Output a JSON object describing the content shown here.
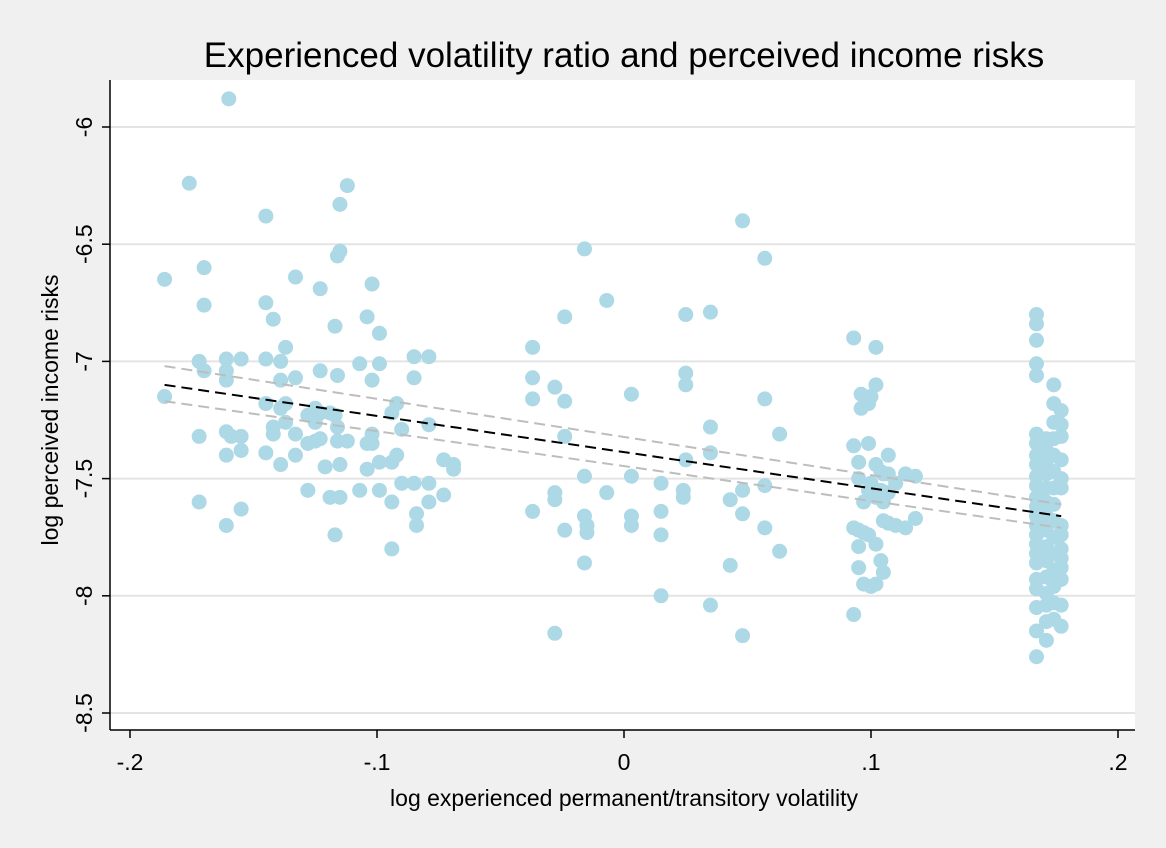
{
  "chart_data": {
    "type": "scatter",
    "title": "Experienced volatility ratio and perceived income risks",
    "xlabel": "log experienced permanent/transitory volatility",
    "ylabel": "log perceived income risks",
    "xlim": [
      -0.2,
      0.205
    ],
    "ylim": [
      -8.55,
      -5.8
    ],
    "x_ticks": [
      {
        "value": -0.2,
        "label": "-.2"
      },
      {
        "value": -0.1,
        "label": "-.1"
      },
      {
        "value": 0,
        "label": "0"
      },
      {
        "value": 0.1,
        "label": ".1"
      },
      {
        "value": 0.2,
        "label": ".2"
      }
    ],
    "y_ticks": [
      {
        "value": -6,
        "label": "-6"
      },
      {
        "value": -6.5,
        "label": "-6.5"
      },
      {
        "value": -7,
        "label": "-7"
      },
      {
        "value": -7.5,
        "label": "-7.5"
      },
      {
        "value": -8,
        "label": "-8"
      },
      {
        "value": -8.5,
        "label": "-8.5"
      }
    ],
    "grid": "horizontal",
    "colors": {
      "points": "#add8e6",
      "fit_line": "#000000",
      "ci_lines": "#bdbdbd",
      "plot_background": "#ffffff",
      "page_background": "#f0f0f0",
      "grid": "#e4e4e4"
    },
    "fit_line": {
      "x": [
        -0.186,
        0.177
      ],
      "y": [
        -7.1,
        -7.66
      ]
    },
    "ci_upper": {
      "x": [
        -0.186,
        0.177
      ],
      "y": [
        -7.02,
        -7.61
      ]
    },
    "ci_lower": {
      "x": [
        -0.186,
        0.177
      ],
      "y": [
        -7.17,
        -7.71
      ]
    },
    "points": [
      [
        -0.186,
        -6.65
      ],
      [
        -0.186,
        -7.15
      ],
      [
        -0.176,
        -6.24
      ],
      [
        -0.172,
        -7.0
      ],
      [
        -0.172,
        -7.32
      ],
      [
        -0.172,
        -7.6
      ],
      [
        -0.17,
        -6.6
      ],
      [
        -0.17,
        -6.76
      ],
      [
        -0.17,
        -7.04
      ],
      [
        -0.16,
        -5.88
      ],
      [
        -0.161,
        -6.99
      ],
      [
        -0.161,
        -7.04
      ],
      [
        -0.161,
        -7.08
      ],
      [
        -0.161,
        -7.3
      ],
      [
        -0.161,
        -7.4
      ],
      [
        -0.161,
        -7.7
      ],
      [
        -0.159,
        -7.32
      ],
      [
        -0.155,
        -6.99
      ],
      [
        -0.155,
        -7.32
      ],
      [
        -0.155,
        -7.38
      ],
      [
        -0.155,
        -7.63
      ],
      [
        -0.145,
        -6.38
      ],
      [
        -0.145,
        -6.75
      ],
      [
        -0.145,
        -6.99
      ],
      [
        -0.145,
        -7.18
      ],
      [
        -0.145,
        -7.39
      ],
      [
        -0.142,
        -6.82
      ],
      [
        -0.142,
        -7.28
      ],
      [
        -0.142,
        -7.31
      ],
      [
        -0.139,
        -7.0
      ],
      [
        -0.139,
        -7.08
      ],
      [
        -0.139,
        -7.2
      ],
      [
        -0.139,
        -7.44
      ],
      [
        -0.137,
        -6.94
      ],
      [
        -0.137,
        -7.18
      ],
      [
        -0.137,
        -7.26
      ],
      [
        -0.133,
        -6.64
      ],
      [
        -0.133,
        -7.07
      ],
      [
        -0.133,
        -7.31
      ],
      [
        -0.133,
        -7.4
      ],
      [
        -0.128,
        -7.23
      ],
      [
        -0.128,
        -7.35
      ],
      [
        -0.128,
        -7.55
      ],
      [
        -0.125,
        -7.2
      ],
      [
        -0.125,
        -7.26
      ],
      [
        -0.125,
        -7.34
      ],
      [
        -0.123,
        -6.69
      ],
      [
        -0.123,
        -7.04
      ],
      [
        -0.123,
        -7.22
      ],
      [
        -0.123,
        -7.33
      ],
      [
        -0.121,
        -7.45
      ],
      [
        -0.119,
        -7.22
      ],
      [
        -0.119,
        -7.58
      ],
      [
        -0.117,
        -6.85
      ],
      [
        -0.117,
        -7.23
      ],
      [
        -0.117,
        -7.74
      ],
      [
        -0.116,
        -6.55
      ],
      [
        -0.116,
        -7.06
      ],
      [
        -0.116,
        -7.28
      ],
      [
        -0.116,
        -7.34
      ],
      [
        -0.115,
        -6.53
      ],
      [
        -0.115,
        -6.33
      ],
      [
        -0.115,
        -7.44
      ],
      [
        -0.115,
        -7.58
      ],
      [
        -0.112,
        -6.25
      ],
      [
        -0.112,
        -7.34
      ],
      [
        -0.107,
        -7.01
      ],
      [
        -0.107,
        -7.55
      ],
      [
        -0.104,
        -6.81
      ],
      [
        -0.104,
        -7.35
      ],
      [
        -0.104,
        -7.46
      ],
      [
        -0.102,
        -6.67
      ],
      [
        -0.102,
        -7.08
      ],
      [
        -0.102,
        -7.31
      ],
      [
        -0.102,
        -7.35
      ],
      [
        -0.099,
        -6.88
      ],
      [
        -0.099,
        -7.01
      ],
      [
        -0.099,
        -7.43
      ],
      [
        -0.099,
        -7.55
      ],
      [
        -0.094,
        -7.22
      ],
      [
        -0.094,
        -7.43
      ],
      [
        -0.094,
        -7.6
      ],
      [
        -0.094,
        -7.8
      ],
      [
        -0.092,
        -7.18
      ],
      [
        -0.092,
        -7.4
      ],
      [
        -0.09,
        -7.29
      ],
      [
        -0.09,
        -7.52
      ],
      [
        -0.085,
        -6.98
      ],
      [
        -0.085,
        -7.07
      ],
      [
        -0.085,
        -7.52
      ],
      [
        -0.084,
        -7.65
      ],
      [
        -0.084,
        -7.7
      ],
      [
        -0.079,
        -6.98
      ],
      [
        -0.079,
        -7.27
      ],
      [
        -0.079,
        -7.52
      ],
      [
        -0.079,
        -7.6
      ],
      [
        -0.073,
        -7.42
      ],
      [
        -0.073,
        -7.57
      ],
      [
        -0.069,
        -7.44
      ],
      [
        -0.069,
        -7.46
      ],
      [
        -0.037,
        -6.94
      ],
      [
        -0.037,
        -7.07
      ],
      [
        -0.037,
        -7.16
      ],
      [
        -0.037,
        -7.64
      ],
      [
        -0.028,
        -7.11
      ],
      [
        -0.028,
        -7.56
      ],
      [
        -0.028,
        -7.59
      ],
      [
        -0.028,
        -8.16
      ],
      [
        -0.024,
        -6.81
      ],
      [
        -0.024,
        -7.17
      ],
      [
        -0.024,
        -7.32
      ],
      [
        -0.024,
        -7.72
      ],
      [
        -0.016,
        -6.52
      ],
      [
        -0.016,
        -7.49
      ],
      [
        -0.016,
        -7.66
      ],
      [
        -0.016,
        -7.86
      ],
      [
        -0.015,
        -7.7
      ],
      [
        -0.015,
        -7.73
      ],
      [
        -0.007,
        -6.74
      ],
      [
        -0.007,
        -7.56
      ],
      [
        0.003,
        -7.14
      ],
      [
        0.003,
        -7.49
      ],
      [
        0.003,
        -7.66
      ],
      [
        0.003,
        -7.7
      ],
      [
        0.015,
        -7.52
      ],
      [
        0.015,
        -7.64
      ],
      [
        0.015,
        -7.74
      ],
      [
        0.015,
        -8.0
      ],
      [
        0.024,
        -7.55
      ],
      [
        0.024,
        -7.58
      ],
      [
        0.025,
        -6.8
      ],
      [
        0.025,
        -7.05
      ],
      [
        0.025,
        -7.1
      ],
      [
        0.025,
        -7.42
      ],
      [
        0.035,
        -6.79
      ],
      [
        0.035,
        -7.28
      ],
      [
        0.035,
        -7.39
      ],
      [
        0.035,
        -8.04
      ],
      [
        0.043,
        -7.59
      ],
      [
        0.043,
        -7.87
      ],
      [
        0.048,
        -6.4
      ],
      [
        0.048,
        -7.55
      ],
      [
        0.048,
        -7.65
      ],
      [
        0.048,
        -8.17
      ],
      [
        0.057,
        -6.56
      ],
      [
        0.057,
        -7.16
      ],
      [
        0.057,
        -7.53
      ],
      [
        0.057,
        -7.71
      ],
      [
        0.063,
        -7.31
      ],
      [
        0.063,
        -7.81
      ],
      [
        0.093,
        -6.9
      ],
      [
        0.093,
        -7.36
      ],
      [
        0.093,
        -7.71
      ],
      [
        0.093,
        -8.08
      ],
      [
        0.095,
        -7.43
      ],
      [
        0.095,
        -7.5
      ],
      [
        0.095,
        -7.72
      ],
      [
        0.095,
        -7.79
      ],
      [
        0.095,
        -7.88
      ],
      [
        0.096,
        -7.14
      ],
      [
        0.096,
        -7.2
      ],
      [
        0.097,
        -7.6
      ],
      [
        0.097,
        -7.73
      ],
      [
        0.097,
        -7.95
      ],
      [
        0.099,
        -7.18
      ],
      [
        0.099,
        -7.35
      ],
      [
        0.099,
        -7.55
      ],
      [
        0.099,
        -7.74
      ],
      [
        0.1,
        -7.15
      ],
      [
        0.1,
        -7.52
      ],
      [
        0.1,
        -7.96
      ],
      [
        0.102,
        -6.94
      ],
      [
        0.102,
        -7.1
      ],
      [
        0.102,
        -7.44
      ],
      [
        0.102,
        -7.58
      ],
      [
        0.102,
        -7.78
      ],
      [
        0.102,
        -7.95
      ],
      [
        0.104,
        -7.47
      ],
      [
        0.104,
        -7.55
      ],
      [
        0.104,
        -7.85
      ],
      [
        0.105,
        -7.48
      ],
      [
        0.105,
        -7.56
      ],
      [
        0.105,
        -7.6
      ],
      [
        0.105,
        -7.68
      ],
      [
        0.105,
        -7.9
      ],
      [
        0.107,
        -7.4
      ],
      [
        0.107,
        -7.48
      ],
      [
        0.107,
        -7.56
      ],
      [
        0.107,
        -7.69
      ],
      [
        0.11,
        -7.52
      ],
      [
        0.11,
        -7.7
      ],
      [
        0.114,
        -7.48
      ],
      [
        0.114,
        -7.71
      ],
      [
        0.118,
        -7.49
      ],
      [
        0.118,
        -7.67
      ],
      [
        0.167,
        -6.8
      ],
      [
        0.167,
        -6.84
      ],
      [
        0.167,
        -6.91
      ],
      [
        0.167,
        -7.01
      ],
      [
        0.167,
        -7.06
      ],
      [
        0.167,
        -7.31
      ],
      [
        0.167,
        -7.35
      ],
      [
        0.167,
        -7.4
      ],
      [
        0.167,
        -7.44
      ],
      [
        0.167,
        -7.49
      ],
      [
        0.167,
        -7.53
      ],
      [
        0.167,
        -7.58
      ],
      [
        0.167,
        -7.62
      ],
      [
        0.167,
        -7.66
      ],
      [
        0.167,
        -7.7
      ],
      [
        0.167,
        -7.74
      ],
      [
        0.167,
        -7.78
      ],
      [
        0.167,
        -7.82
      ],
      [
        0.167,
        -7.86
      ],
      [
        0.167,
        -7.93
      ],
      [
        0.167,
        -7.97
      ],
      [
        0.167,
        -8.05
      ],
      [
        0.167,
        -8.15
      ],
      [
        0.167,
        -8.26
      ],
      [
        0.171,
        -7.33
      ],
      [
        0.171,
        -7.38
      ],
      [
        0.171,
        -7.43
      ],
      [
        0.171,
        -7.48
      ],
      [
        0.171,
        -7.54
      ],
      [
        0.171,
        -7.6
      ],
      [
        0.171,
        -7.66
      ],
      [
        0.171,
        -7.72
      ],
      [
        0.171,
        -7.79
      ],
      [
        0.171,
        -7.85
      ],
      [
        0.171,
        -7.92
      ],
      [
        0.171,
        -7.99
      ],
      [
        0.171,
        -8.04
      ],
      [
        0.171,
        -8.11
      ],
      [
        0.171,
        -8.19
      ],
      [
        0.174,
        -7.1
      ],
      [
        0.174,
        -7.18
      ],
      [
        0.174,
        -7.26
      ],
      [
        0.174,
        -7.33
      ],
      [
        0.174,
        -7.4
      ],
      [
        0.174,
        -7.47
      ],
      [
        0.174,
        -7.54
      ],
      [
        0.174,
        -7.61
      ],
      [
        0.174,
        -7.68
      ],
      [
        0.174,
        -7.75
      ],
      [
        0.174,
        -7.82
      ],
      [
        0.174,
        -7.89
      ],
      [
        0.174,
        -7.96
      ],
      [
        0.174,
        -8.03
      ],
      [
        0.174,
        -8.1
      ],
      [
        0.177,
        -7.21
      ],
      [
        0.177,
        -7.27
      ],
      [
        0.177,
        -7.32
      ],
      [
        0.177,
        -7.42
      ],
      [
        0.177,
        -7.5
      ],
      [
        0.177,
        -7.54
      ],
      [
        0.177,
        -7.7
      ],
      [
        0.177,
        -7.74
      ],
      [
        0.177,
        -7.8
      ],
      [
        0.177,
        -7.84
      ],
      [
        0.177,
        -7.88
      ],
      [
        0.177,
        -7.93
      ],
      [
        0.177,
        -8.04
      ],
      [
        0.177,
        -8.13
      ]
    ]
  }
}
